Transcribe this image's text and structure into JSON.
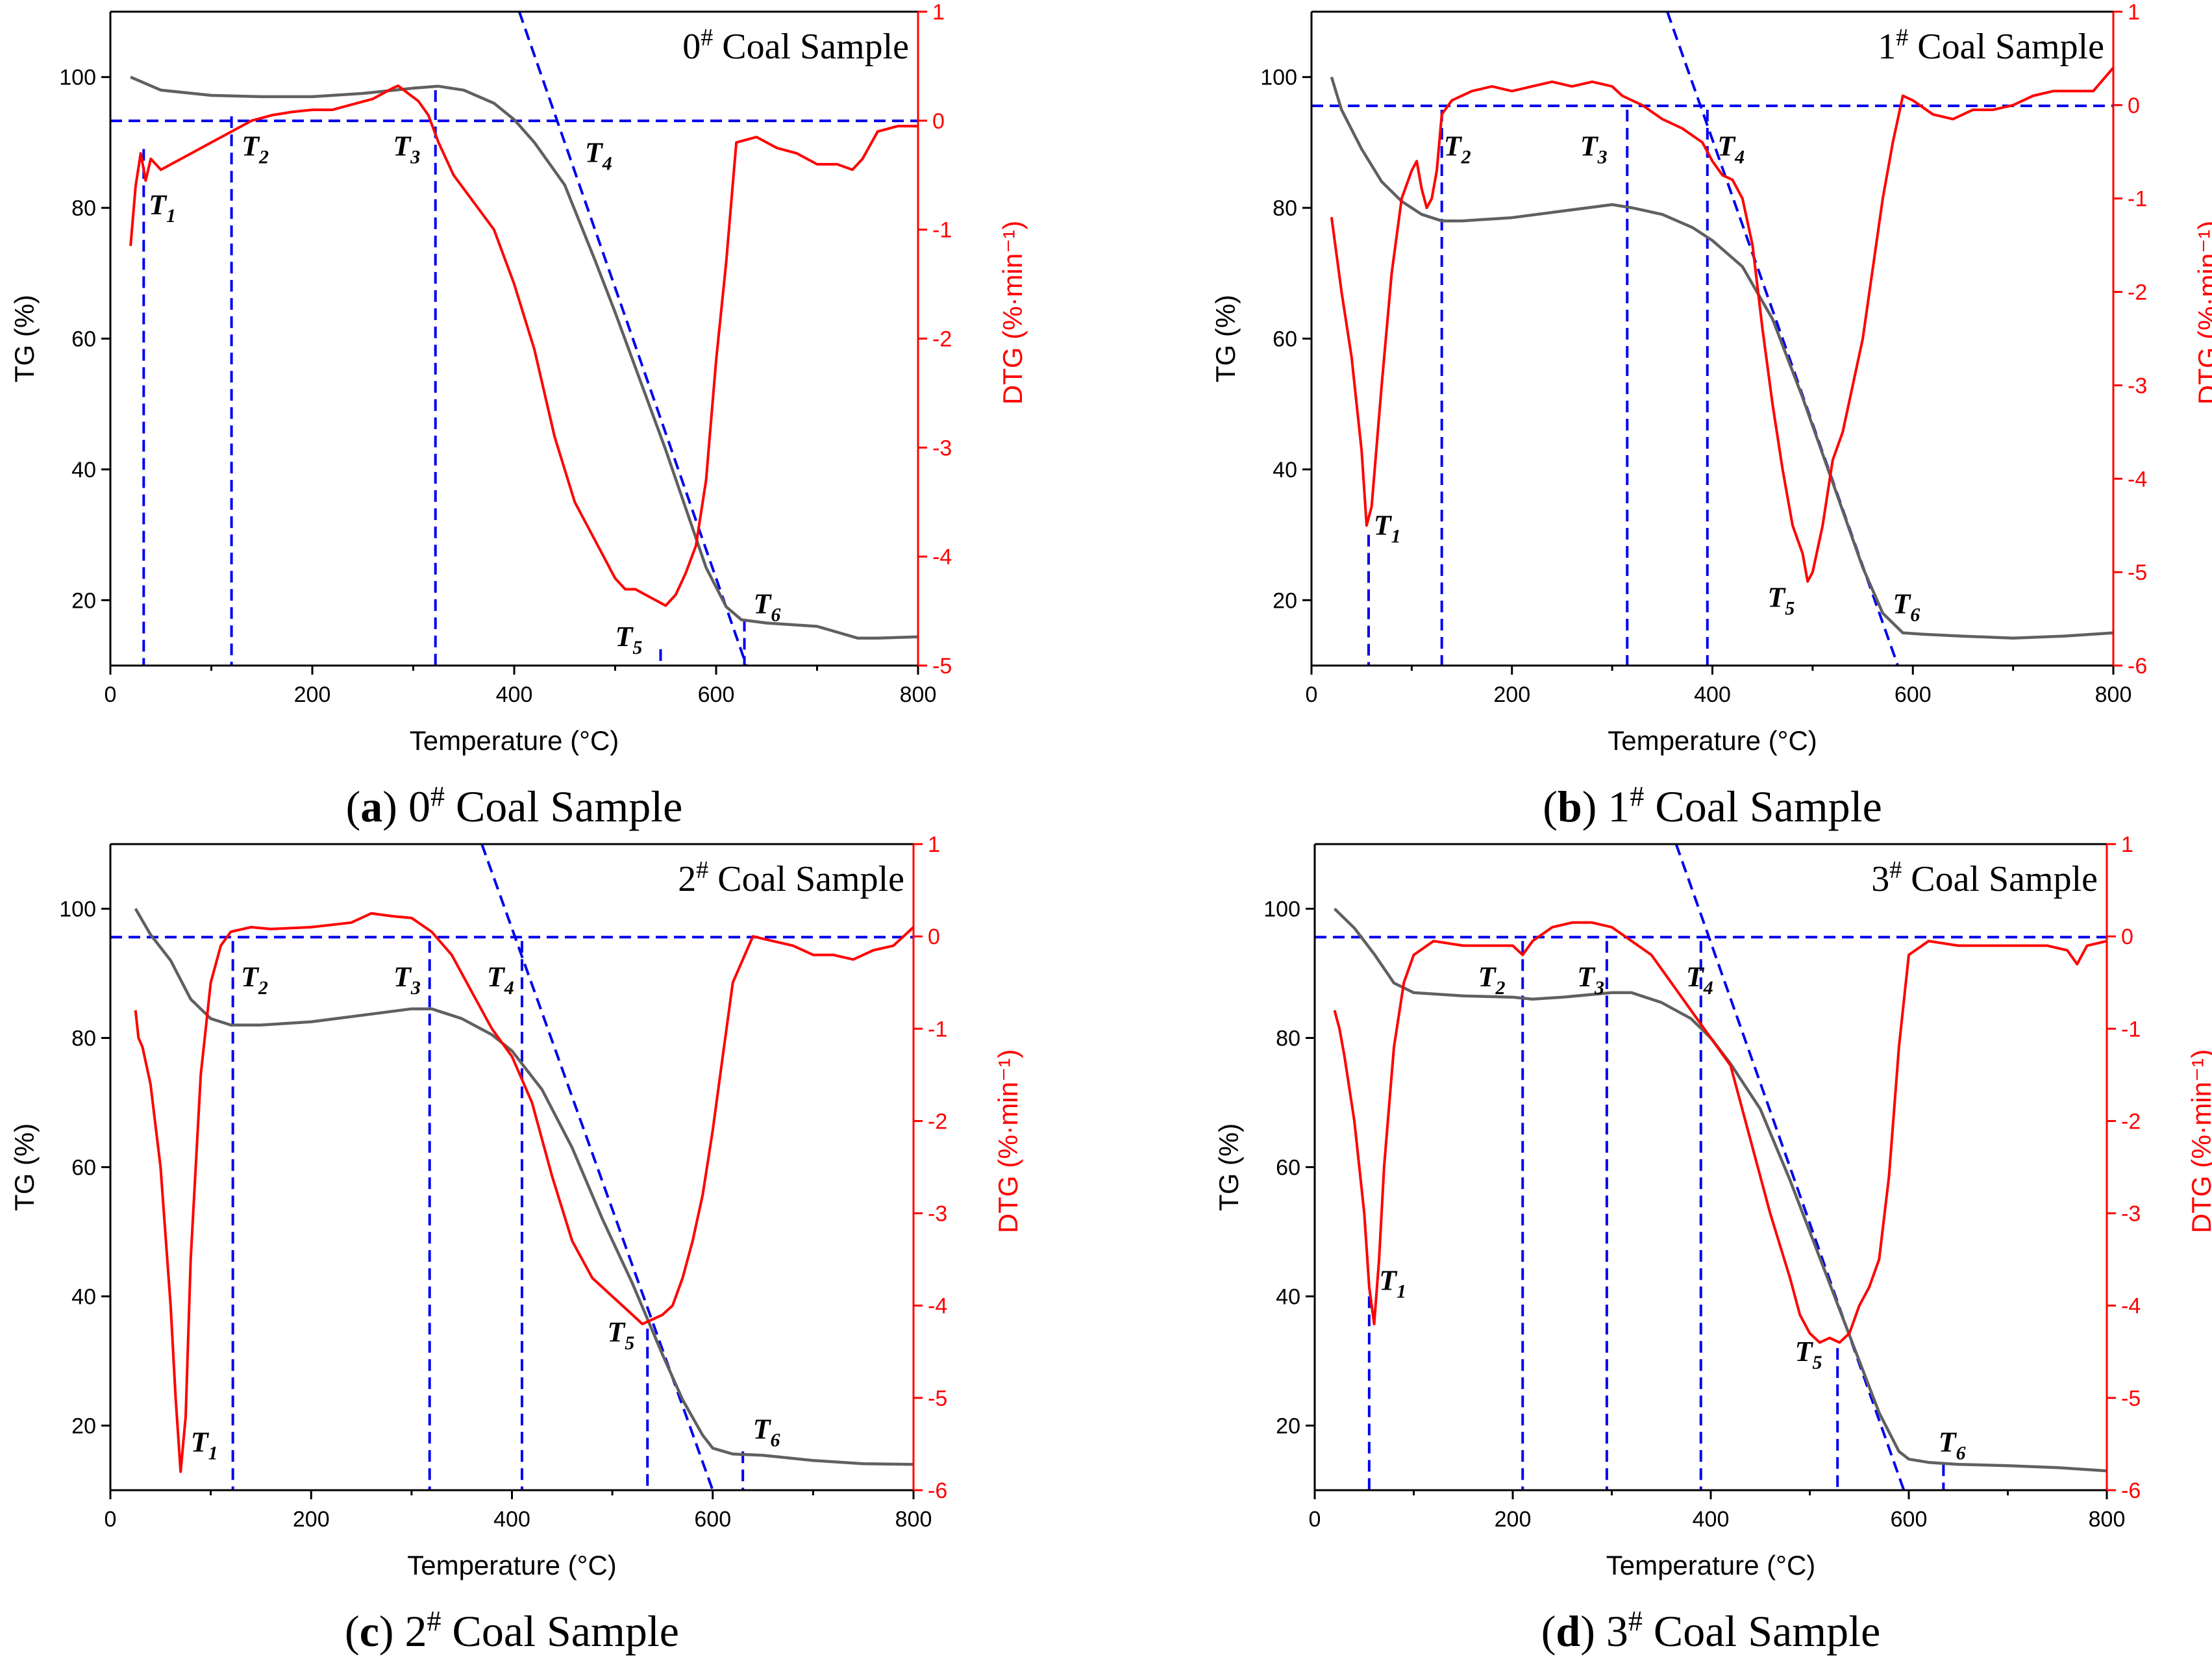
{
  "colors": {
    "tg_line": "#606060",
    "dtg_line": "#ff0000",
    "dtg_axis": "#ff0000",
    "guide": "#0000ee",
    "axis": "#000000"
  },
  "chart_data": [
    {
      "panel": "a",
      "type": "line",
      "title": "0# Coal Sample",
      "title_base": "0",
      "title_sup": "#",
      "title_rest": " Coal Sample",
      "caption_letter": "a",
      "caption_rest": "0# Coal Sample",
      "caption_num": "0",
      "caption_sup": "#",
      "caption_tail": " Coal Sample",
      "xlabel": "Temperature (°C)",
      "ylabel_left": "TG (%)",
      "ylabel_right": "DTG (%·min⁻¹)",
      "ylabel_right_base": "DTG (%·min",
      "ylabel_right_sup": "-1",
      "ylabel_right_close": ")",
      "xlim": [
        0,
        800
      ],
      "ylim_left": [
        10,
        110
      ],
      "ylim_right": [
        -5,
        1
      ],
      "xticks": [
        0,
        200,
        400,
        600,
        800
      ],
      "yticks_left": [
        20,
        40,
        60,
        80,
        100
      ],
      "yticks_right": [
        -5,
        -4,
        -3,
        -2,
        -1,
        0,
        1
      ],
      "tg": {
        "x": [
          20,
          50,
          100,
          150,
          200,
          250,
          300,
          325,
          350,
          380,
          400,
          420,
          450,
          480,
          500,
          550,
          590,
          610,
          625,
          650,
          700,
          740,
          760,
          800
        ],
        "y": [
          100,
          98,
          97.2,
          97,
          97,
          97.5,
          98.3,
          98.6,
          98,
          96,
          93.5,
          90,
          83.5,
          72,
          64,
          43,
          25,
          19,
          17,
          16.5,
          16,
          14.2,
          14.2,
          14.4
        ]
      },
      "dtg": {
        "x": [
          20,
          25,
          30,
          35,
          40,
          50,
          60,
          70,
          80,
          100,
          120,
          140,
          160,
          180,
          200,
          220,
          240,
          260,
          280,
          285,
          295,
          305,
          315,
          325,
          340,
          360,
          380,
          400,
          420,
          440,
          460,
          480,
          500,
          510,
          520,
          530,
          540,
          550,
          560,
          570,
          580,
          590,
          600,
          610,
          620,
          640,
          660,
          680,
          700,
          720,
          735,
          745,
          760,
          780,
          800
        ],
        "y": [
          -1.15,
          -0.6,
          -0.3,
          -0.55,
          -0.35,
          -0.45,
          -0.4,
          -0.35,
          -0.3,
          -0.2,
          -0.1,
          0.0,
          0.05,
          0.08,
          0.1,
          0.1,
          0.15,
          0.2,
          0.3,
          0.32,
          0.25,
          0.18,
          0.05,
          -0.2,
          -0.5,
          -0.75,
          -1.0,
          -1.5,
          -2.1,
          -2.9,
          -3.5,
          -3.85,
          -4.2,
          -4.3,
          -4.3,
          -4.35,
          -4.4,
          -4.45,
          -4.35,
          -4.15,
          -3.9,
          -3.3,
          -2.2,
          -1.3,
          -0.2,
          -0.15,
          -0.25,
          -0.3,
          -0.4,
          -0.4,
          -0.45,
          -0.35,
          -0.1,
          -0.05,
          -0.05
        ]
      },
      "guides": {
        "h_left": 93.3,
        "tangent": [
          [
            405,
            110
          ],
          [
            630,
            10
          ]
        ],
        "verticals": [
          {
            "x": 33,
            "y": 89
          },
          {
            "x": 120,
            "y": 94
          },
          {
            "x": 322,
            "y": 98
          },
          {
            "x": 628,
            "y": 17
          },
          {
            "x": 545,
            "y": 12.5
          }
        ]
      },
      "annotations": [
        {
          "sub": "1",
          "x": 38,
          "y": 79
        },
        {
          "sub": "2",
          "x": 130,
          "y": 88
        },
        {
          "sub": "3",
          "x": 280,
          "y": 88
        },
        {
          "sub": "4",
          "x": 470,
          "y": 87
        },
        {
          "sub": "5",
          "x": 500,
          "y": 13
        },
        {
          "sub": "6",
          "x": 637,
          "y": 18
        }
      ]
    },
    {
      "panel": "b",
      "type": "line",
      "title": "1# Coal Sample",
      "title_base": "1",
      "title_sup": "#",
      "title_rest": " Coal Sample",
      "caption_letter": "b",
      "caption_rest": "1# Coal Sample",
      "caption_num": "1",
      "caption_sup": "#",
      "caption_tail": " Coal Sample",
      "xlabel": "Temperature (°C)",
      "ylabel_left": "TG (%)",
      "ylabel_right": "DTG (%·min⁻¹)",
      "ylabel_right_base": "DTG (%·min",
      "ylabel_right_sup": "-1",
      "ylabel_right_close": ")",
      "xlim": [
        0,
        800
      ],
      "ylim_left": [
        10,
        110
      ],
      "ylim_right": [
        -6,
        1
      ],
      "xticks": [
        0,
        200,
        400,
        600,
        800
      ],
      "yticks_left": [
        20,
        40,
        60,
        80,
        100
      ],
      "yticks_right": [
        -6,
        -5,
        -4,
        -3,
        -2,
        -1,
        0,
        1
      ],
      "tg": {
        "x": [
          20,
          30,
          50,
          70,
          90,
          110,
          130,
          150,
          200,
          250,
          300,
          320,
          350,
          380,
          400,
          430,
          460,
          490,
          520,
          550,
          570,
          590,
          610,
          650,
          700,
          750,
          800
        ],
        "y": [
          100,
          95,
          89,
          84,
          81,
          79,
          78,
          78,
          78.5,
          79.5,
          80.5,
          80,
          79,
          77,
          75,
          71,
          63,
          51,
          38,
          25,
          18,
          15,
          14.8,
          14.5,
          14.2,
          14.5,
          15
        ]
      },
      "dtg": {
        "x": [
          20,
          30,
          40,
          50,
          55,
          60,
          70,
          80,
          90,
          100,
          105,
          110,
          115,
          120,
          125,
          130,
          140,
          160,
          180,
          200,
          220,
          240,
          260,
          280,
          300,
          310,
          330,
          350,
          370,
          390,
          400,
          410,
          420,
          430,
          440,
          450,
          460,
          470,
          480,
          490,
          495,
          500,
          510,
          520,
          530,
          550,
          570,
          580,
          590,
          600,
          620,
          640,
          660,
          680,
          700,
          720,
          740,
          760,
          780,
          800
        ],
        "y": [
          -1.2,
          -2.0,
          -2.7,
          -3.7,
          -4.5,
          -4.3,
          -3.0,
          -1.8,
          -1.0,
          -0.7,
          -0.6,
          -0.9,
          -1.1,
          -1.0,
          -0.7,
          -0.1,
          0.05,
          0.15,
          0.2,
          0.15,
          0.2,
          0.25,
          0.2,
          0.25,
          0.2,
          0.1,
          0.0,
          -0.15,
          -0.25,
          -0.4,
          -0.6,
          -0.75,
          -0.8,
          -1.0,
          -1.5,
          -2.4,
          -3.2,
          -3.9,
          -4.5,
          -4.8,
          -5.1,
          -5.0,
          -4.5,
          -3.8,
          -3.5,
          -2.5,
          -1.0,
          -0.4,
          0.1,
          0.05,
          -0.1,
          -0.15,
          -0.05,
          -0.05,
          0.0,
          0.1,
          0.15,
          0.15,
          0.15,
          0.4
        ]
      },
      "guides": {
        "h_left": 95.6,
        "tangent": [
          [
            355,
            110
          ],
          [
            585,
            10
          ]
        ],
        "verticals": [
          {
            "x": 57,
            "y": 30
          },
          {
            "x": 130,
            "y": 95
          },
          {
            "x": 315,
            "y": 95
          },
          {
            "x": 395,
            "y": 95
          },
          {
            "x": 497,
            "y": 10
          },
          {
            "x": 575,
            "y": 10
          }
        ]
      },
      "annotations": [
        {
          "sub": "1",
          "x": 62,
          "y": 30
        },
        {
          "sub": "2",
          "x": 132,
          "y": 88
        },
        {
          "sub": "3",
          "x": 268,
          "y": 88
        },
        {
          "sub": "4",
          "x": 405,
          "y": 88
        },
        {
          "sub": "5",
          "x": 455,
          "y": 19
        },
        {
          "sub": "6",
          "x": 580,
          "y": 18
        }
      ]
    },
    {
      "panel": "c",
      "type": "line",
      "title": "2# Coal Sample",
      "title_base": "2",
      "title_sup": "#",
      "title_rest": " Coal Sample",
      "caption_letter": "c",
      "caption_rest": "2# Coal Sample",
      "caption_num": "2",
      "caption_sup": "#",
      "caption_tail": " Coal Sample",
      "xlabel": "Temperature (°C)",
      "ylabel_left": "TG (%)",
      "ylabel_right": "DTG (%·min⁻¹)",
      "ylabel_right_base": "DTG (%·min",
      "ylabel_right_sup": "-1",
      "ylabel_right_close": ")",
      "xlim": [
        0,
        800
      ],
      "ylim_left": [
        10,
        110
      ],
      "ylim_right": [
        -6,
        1
      ],
      "xticks": [
        0,
        200,
        400,
        600,
        800
      ],
      "yticks_left": [
        20,
        40,
        60,
        80,
        100
      ],
      "yticks_right": [
        -6,
        -5,
        -4,
        -3,
        -2,
        -1,
        0,
        1
      ],
      "tg": {
        "x": [
          25,
          40,
          60,
          80,
          100,
          120,
          150,
          200,
          250,
          300,
          320,
          350,
          380,
          400,
          430,
          460,
          490,
          520,
          550,
          570,
          590,
          600,
          620,
          650,
          700,
          750,
          800
        ],
        "y": [
          100,
          96,
          92,
          86,
          83,
          82,
          82,
          82.5,
          83.5,
          84.5,
          84.5,
          83,
          80.5,
          78,
          72,
          63,
          52,
          42,
          31,
          24,
          18.5,
          16.5,
          15.6,
          15.4,
          14.6,
          14.1,
          14
        ]
      },
      "dtg": {
        "x": [
          25,
          28,
          32,
          40,
          50,
          60,
          65,
          70,
          75,
          80,
          90,
          100,
          110,
          120,
          140,
          160,
          200,
          240,
          260,
          280,
          300,
          320,
          340,
          360,
          380,
          400,
          420,
          440,
          460,
          480,
          500,
          520,
          530,
          540,
          550,
          560,
          570,
          580,
          590,
          600,
          610,
          620,
          640,
          660,
          680,
          700,
          720,
          740,
          760,
          780,
          800
        ],
        "y": [
          -0.8,
          -1.1,
          -1.2,
          -1.6,
          -2.5,
          -4.0,
          -5.0,
          -5.8,
          -5.2,
          -3.5,
          -1.5,
          -0.5,
          -0.1,
          0.05,
          0.1,
          0.08,
          0.1,
          0.15,
          0.25,
          0.22,
          0.2,
          0.05,
          -0.2,
          -0.6,
          -1.0,
          -1.3,
          -1.8,
          -2.6,
          -3.3,
          -3.7,
          -3.9,
          -4.1,
          -4.2,
          -4.15,
          -4.1,
          -4.0,
          -3.7,
          -3.3,
          -2.8,
          -2.1,
          -1.3,
          -0.5,
          0.0,
          -0.05,
          -0.1,
          -0.2,
          -0.2,
          -0.25,
          -0.15,
          -0.1,
          0.1
        ]
      },
      "guides": {
        "h_left": 95.6,
        "tangent": [
          [
            370,
            110
          ],
          [
            600,
            10
          ]
        ],
        "verticals": [
          {
            "x": 122,
            "y": 95
          },
          {
            "x": 318,
            "y": 95
          },
          {
            "x": 410,
            "y": 95
          },
          {
            "x": 535,
            "y": 35
          },
          {
            "x": 630,
            "y": 16
          }
        ]
      },
      "annotations": [
        {
          "sub": "1",
          "x": 80,
          "y": 16
        },
        {
          "sub": "2",
          "x": 130,
          "y": 88
        },
        {
          "sub": "3",
          "x": 282,
          "y": 88
        },
        {
          "sub": "4",
          "x": 375,
          "y": 88
        },
        {
          "sub": "5",
          "x": 495,
          "y": 33
        },
        {
          "sub": "6",
          "x": 640,
          "y": 18
        }
      ]
    },
    {
      "panel": "d",
      "type": "line",
      "title": "3# Coal Sample",
      "title_base": "3",
      "title_sup": "#",
      "title_rest": " Coal Sample",
      "caption_letter": "d",
      "caption_rest": "3# Coal Sample",
      "caption_num": "3",
      "caption_sup": "#",
      "caption_tail": " Coal Sample",
      "xlabel": "Temperature (°C)",
      "ylabel_left": "TG (%)",
      "ylabel_right": "DTG (%·min⁻¹)",
      "ylabel_right_base": "DTG (%·min",
      "ylabel_right_sup": "-1",
      "ylabel_right_close": ")",
      "xlim": [
        0,
        800
      ],
      "ylim_left": [
        10,
        110
      ],
      "ylim_right": [
        -6,
        1
      ],
      "xticks": [
        0,
        200,
        400,
        600,
        800
      ],
      "yticks_left": [
        20,
        40,
        60,
        80,
        100
      ],
      "yticks_right": [
        -6,
        -5,
        -4,
        -3,
        -2,
        -1,
        0,
        1
      ],
      "tg": {
        "x": [
          20,
          40,
          60,
          80,
          100,
          150,
          200,
          220,
          250,
          300,
          320,
          350,
          380,
          400,
          420,
          450,
          480,
          510,
          540,
          570,
          590,
          600,
          620,
          650,
          700,
          750,
          800
        ],
        "y": [
          100,
          97,
          93,
          88.5,
          87,
          86.5,
          86.3,
          86,
          86.3,
          87,
          87,
          85.5,
          83,
          80,
          76,
          69,
          58,
          46,
          34,
          22,
          16,
          14.8,
          14.3,
          14,
          13.8,
          13.5,
          13
        ]
      },
      "dtg": {
        "x": [
          20,
          25,
          30,
          40,
          50,
          55,
          60,
          65,
          70,
          80,
          90,
          100,
          120,
          150,
          180,
          200,
          210,
          220,
          240,
          260,
          280,
          300,
          320,
          340,
          360,
          380,
          400,
          420,
          440,
          460,
          480,
          490,
          500,
          510,
          520,
          530,
          540,
          550,
          560,
          570,
          580,
          590,
          600,
          620,
          650,
          700,
          740,
          760,
          770,
          780,
          800
        ],
        "y": [
          -0.8,
          -1.0,
          -1.3,
          -2.0,
          -3.0,
          -3.8,
          -4.2,
          -3.5,
          -2.5,
          -1.2,
          -0.5,
          -0.2,
          -0.05,
          -0.1,
          -0.1,
          -0.1,
          -0.2,
          -0.05,
          0.1,
          0.15,
          0.15,
          0.1,
          -0.05,
          -0.2,
          -0.5,
          -0.8,
          -1.1,
          -1.4,
          -2.2,
          -3.0,
          -3.7,
          -4.1,
          -4.3,
          -4.4,
          -4.35,
          -4.4,
          -4.3,
          -4.0,
          -3.8,
          -3.5,
          -2.6,
          -1.2,
          -0.2,
          -0.05,
          -0.1,
          -0.1,
          -0.1,
          -0.15,
          -0.3,
          -0.1,
          -0.05
        ]
      },
      "guides": {
        "h_left": 95.6,
        "tangent": [
          [
            365,
            110
          ],
          [
            595,
            10
          ]
        ],
        "verticals": [
          {
            "x": 55,
            "y": 40
          },
          {
            "x": 210,
            "y": 95
          },
          {
            "x": 295,
            "y": 95
          },
          {
            "x": 390,
            "y": 95
          },
          {
            "x": 528,
            "y": 32
          },
          {
            "x": 635,
            "y": 14
          }
        ]
      },
      "annotations": [
        {
          "sub": "1",
          "x": 65,
          "y": 41
        },
        {
          "sub": "2",
          "x": 165,
          "y": 88
        },
        {
          "sub": "3",
          "x": 265,
          "y": 88
        },
        {
          "sub": "4",
          "x": 375,
          "y": 88
        },
        {
          "sub": "5",
          "x": 485,
          "y": 30
        },
        {
          "sub": "6",
          "x": 630,
          "y": 16
        }
      ]
    }
  ]
}
